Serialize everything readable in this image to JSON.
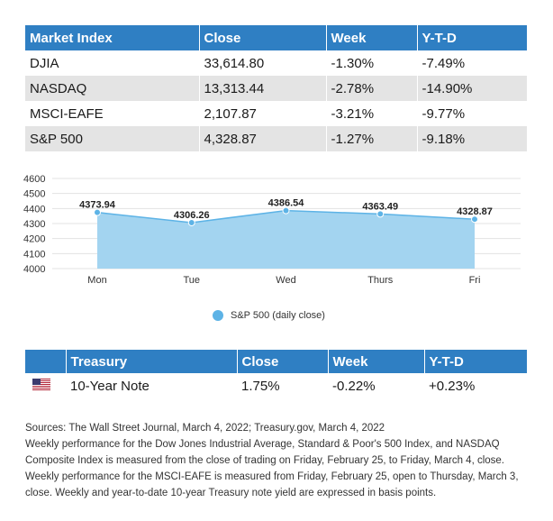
{
  "market_table": {
    "headers": [
      "Market Index",
      "Close",
      "Week",
      "Y-T-D"
    ],
    "rows": [
      {
        "index": "DJIA",
        "close": "33,614.80",
        "week": "-1.30%",
        "ytd": "-7.49%"
      },
      {
        "index": "NASDAQ",
        "close": "13,313.44",
        "week": "-2.78%",
        "ytd": "-14.90%"
      },
      {
        "index": "MSCI-EAFE",
        "close": "2,107.87",
        "week": "-3.21%",
        "ytd": "-9.77%"
      },
      {
        "index": "S&P 500",
        "close": "4,328.87",
        "week": "-1.27%",
        "ytd": "-9.18%"
      }
    ]
  },
  "chart_data": {
    "type": "area",
    "title": "",
    "xlabel": "",
    "ylabel": "",
    "categories": [
      "Mon",
      "Tue",
      "Wed",
      "Thurs",
      "Fri"
    ],
    "series": [
      {
        "name": "S&P 500 (daily close)",
        "values": [
          4373.94,
          4306.26,
          4386.54,
          4363.49,
          4328.87
        ],
        "labels": [
          "4373.94",
          "4306.26",
          "4386.54",
          "4363.49",
          "4328.87"
        ],
        "color": "#5db3e6"
      }
    ],
    "ylim": [
      4000,
      4600
    ],
    "yticks": [
      4000,
      4100,
      4200,
      4300,
      4400,
      4500,
      4600
    ],
    "ytick_labels": [
      "4000",
      "4100",
      "4200",
      "4300",
      "4400",
      "4500",
      "4600"
    ],
    "grid": true,
    "legend": "bottom"
  },
  "treasury_table": {
    "headers": [
      "Treasury",
      "Close",
      "Week",
      "Y-T-D"
    ],
    "row": {
      "flag_icon": "us-flag-icon",
      "name": "10-Year Note",
      "close": "1.75%",
      "week": "-0.22%",
      "ytd": "+0.23%"
    }
  },
  "notes": {
    "sources": "Sources: The Wall Street Journal, March 4, 2022; Treasury.gov, March 4, 2022",
    "line1": "Weekly performance for the Dow Jones Industrial Average, Standard & Poor's 500 Index, and NASDAQ",
    "line2": "Composite Index is measured from the close of trading on Friday, February 25, to Friday, March 4, close.",
    "line3": "Weekly performance for the MSCI-EAFE is measured from Friday, February 25, open to Thursday, March 3,",
    "line4": "close. Weekly and year-to-date 10-year Treasury note yield are expressed in basis points."
  },
  "colors": {
    "header_blue": "#2f7fc3",
    "row_gray": "#e4e4e4",
    "area_fill": "#a3d4f0",
    "area_line": "#5db3e6"
  }
}
